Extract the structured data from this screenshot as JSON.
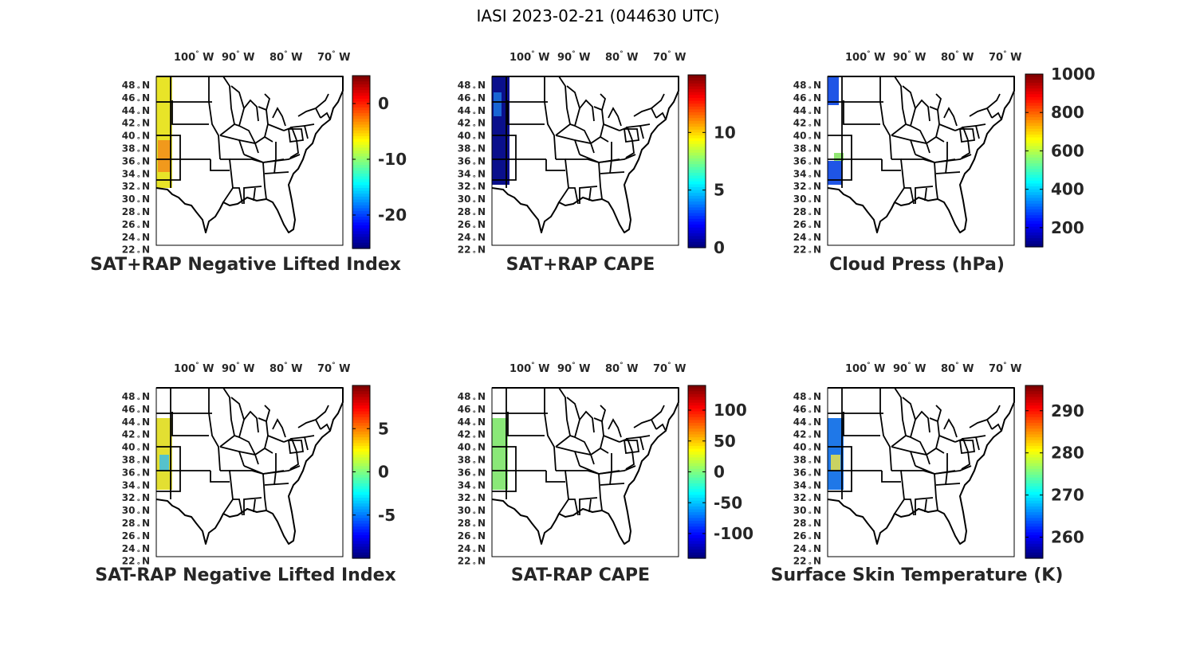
{
  "title": "IASI 2023-02-21 (044630 UTC)",
  "lon_ticks": [
    "100",
    "90",
    "80",
    "70"
  ],
  "lon_suffix": "W",
  "lat_ticks": [
    "48",
    "46",
    "44",
    "42",
    "40",
    "38",
    "36",
    "34",
    "32",
    "30",
    "28",
    "26",
    "24",
    "22"
  ],
  "lat_suffix": "N",
  "map_extent": {
    "lon": [
      -105,
      -67
    ],
    "lat": [
      22,
      49
    ]
  },
  "panels": [
    {
      "title": "SAT+RAP Negative Lifted Index",
      "colorbar": {
        "min": -26,
        "max": 5,
        "ticks": [
          "0",
          "-10",
          "-20"
        ],
        "tick_values": [
          0,
          -10,
          -20
        ]
      },
      "data_color_main": "#e8e428",
      "data_color_alt": "#f28c1a",
      "swath": "west-upper"
    },
    {
      "title": "SAT+RAP CAPE",
      "colorbar": {
        "min": 0,
        "max": 15,
        "ticks": [
          "10",
          "5",
          "0"
        ],
        "tick_values": [
          10,
          5,
          0
        ]
      },
      "data_color_main": "#0a0f8c",
      "data_color_alt": "#1c74e0",
      "swath": "west-full"
    },
    {
      "title": "Cloud Press (hPa)",
      "colorbar": {
        "min": 100,
        "max": 1000,
        "ticks": [
          "1000",
          "800",
          "600",
          "400",
          "200"
        ],
        "tick_values": [
          1000,
          800,
          600,
          400,
          200
        ]
      },
      "data_color_main": "#1f55e6",
      "data_color_alt": "#7fe35a",
      "swath": "west-sparse"
    },
    {
      "title": "SAT-RAP Negative Lifted Index",
      "colorbar": {
        "min": -10,
        "max": 10,
        "ticks": [
          "5",
          "0",
          "-5"
        ],
        "tick_values": [
          5,
          0,
          -5
        ]
      },
      "data_color_main": "#e3df32",
      "data_color_alt": "#3dbde6",
      "swath": "west-mid"
    },
    {
      "title": "SAT-RAP CAPE",
      "colorbar": {
        "min": -140,
        "max": 140,
        "ticks": [
          "100",
          "50",
          "0",
          "-50",
          "-100"
        ],
        "tick_values": [
          100,
          50,
          0,
          -50,
          -100
        ]
      },
      "data_color_main": "#8ae878",
      "data_color_alt": "#8ae878",
      "swath": "west-mid"
    },
    {
      "title": "Surface Skin Temperature (K)",
      "colorbar": {
        "min": 255,
        "max": 296,
        "ticks": [
          "290",
          "280",
          "270",
          "260"
        ],
        "tick_values": [
          290,
          280,
          270,
          260
        ]
      },
      "data_color_main": "#1f78e8",
      "data_color_alt": "#e8e24a",
      "swath": "west-mid"
    }
  ]
}
